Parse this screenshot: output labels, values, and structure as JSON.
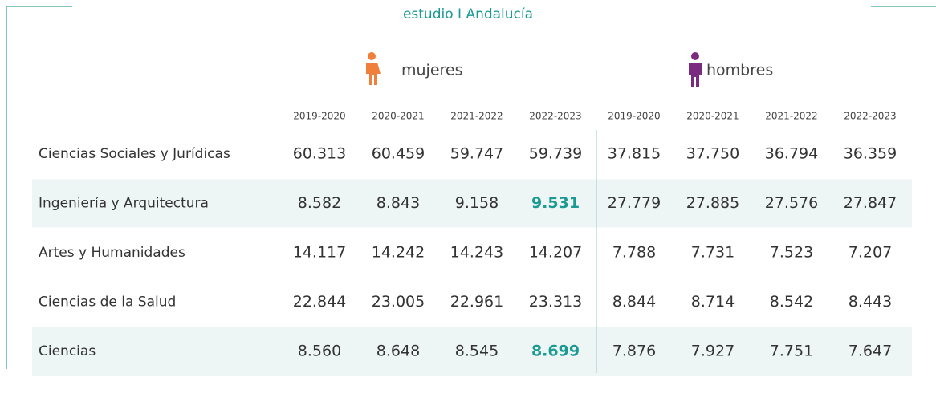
{
  "header": {
    "subtitle": "estudio I Andalucía"
  },
  "table": {
    "groups": [
      "mujeres",
      "hombres"
    ],
    "columns": [
      "2019-2020",
      "2020-2021",
      "2021-2022",
      "2022-2023",
      "2019-2020",
      "2020-2021",
      "2021-2022",
      "2022-2023"
    ],
    "rows": [
      {
        "label": "Ciencias Sociales y Jurídicas",
        "cells": [
          "60.313",
          "60.459",
          "59.747",
          "59.739",
          "37.815",
          "37.750",
          "36.794",
          "36.359"
        ]
      },
      {
        "label": "Ingeniería y Arquitectura",
        "cells": [
          "8.582",
          "8.843",
          "9.158",
          "9.531",
          "27.779",
          "27.885",
          "27.576",
          "27.847"
        ],
        "shaded": true,
        "highlight": 3
      },
      {
        "label": "Artes y Humanidades",
        "cells": [
          "14.117",
          "14.242",
          "14.243",
          "14.207",
          "7.788",
          "7.731",
          "7.523",
          "7.207"
        ]
      },
      {
        "label": "Ciencias de la Salud",
        "cells": [
          "22.844",
          "23.005",
          "22.961",
          "23.313",
          "8.844",
          "8.714",
          "8.542",
          "8.443"
        ]
      },
      {
        "label": "Ciencias",
        "cells": [
          "8.560",
          "8.648",
          "8.545",
          "8.699",
          "7.876",
          "7.927",
          "7.751",
          "7.647"
        ],
        "shaded": true,
        "highlight": 3
      }
    ]
  }
}
